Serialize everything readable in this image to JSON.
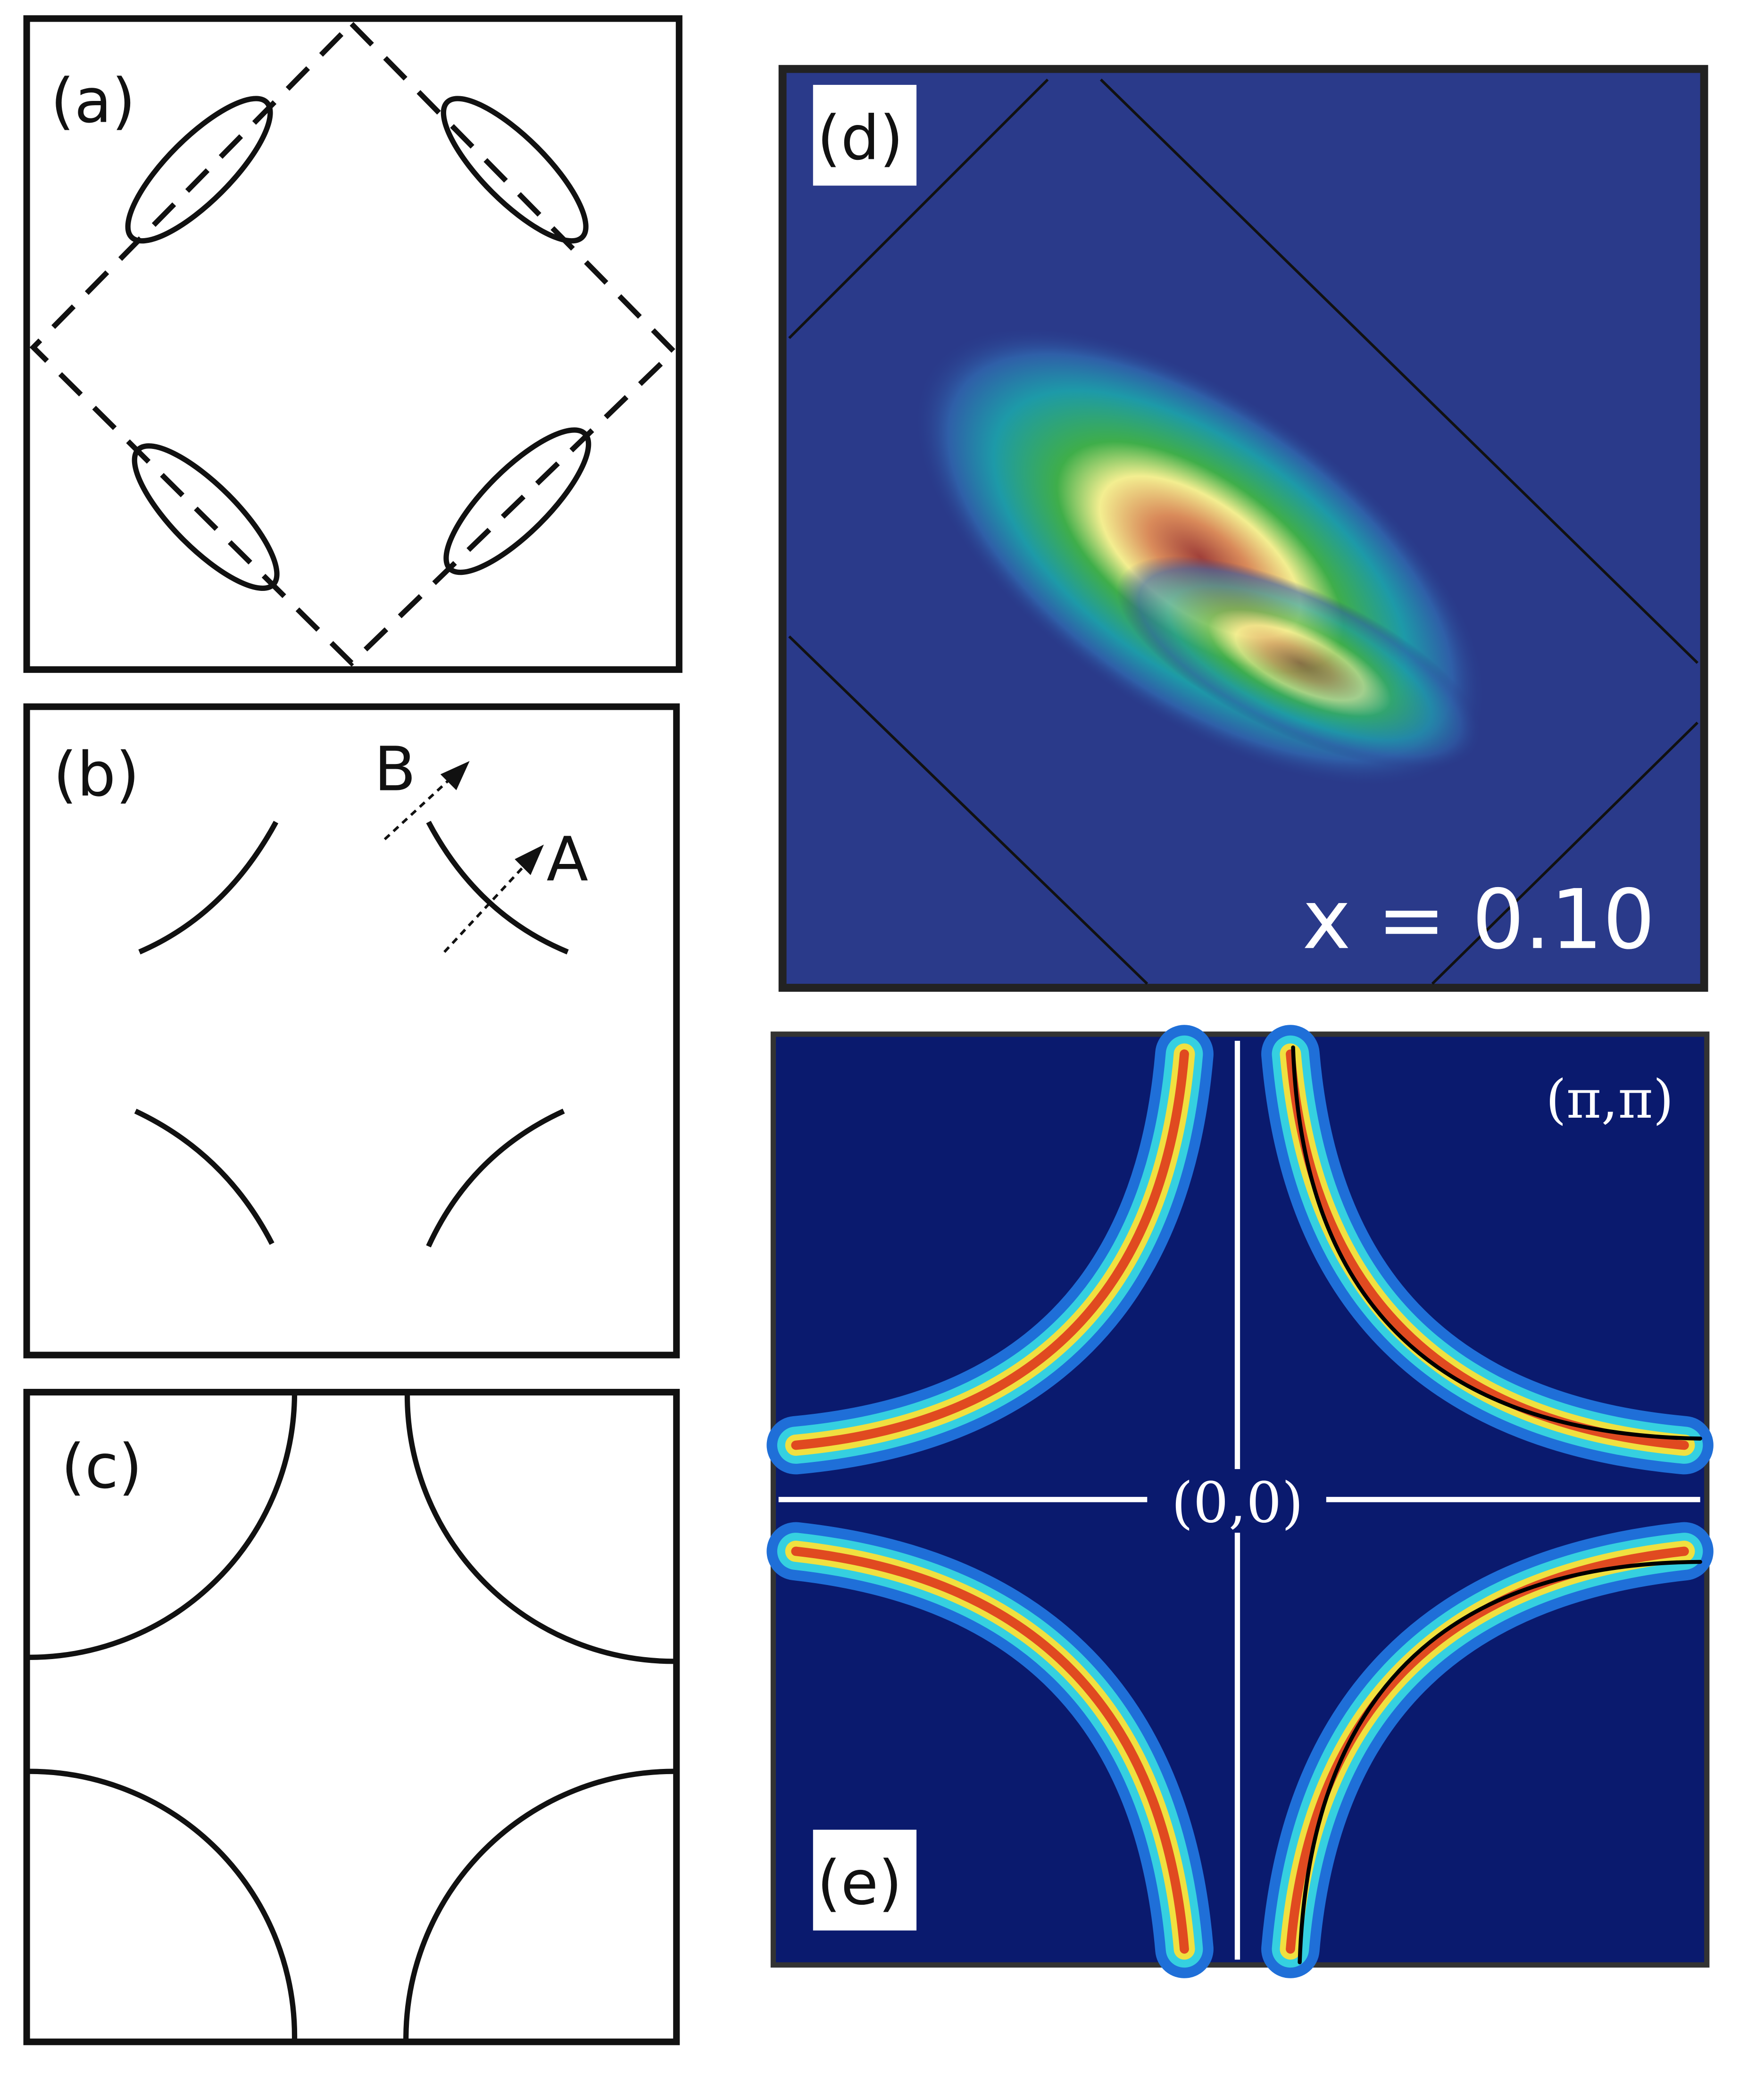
{
  "panels": {
    "a": {
      "label": "(a)"
    },
    "b": {
      "label": "(b)",
      "arrow_b": "B",
      "arrow_a": "A"
    },
    "c": {
      "label": "(c)"
    },
    "d": {
      "label": "(d)",
      "doping": "x = 0.10"
    },
    "e": {
      "label": "(e)",
      "corner": "(π,π)",
      "origin": "(0,0)"
    }
  }
}
